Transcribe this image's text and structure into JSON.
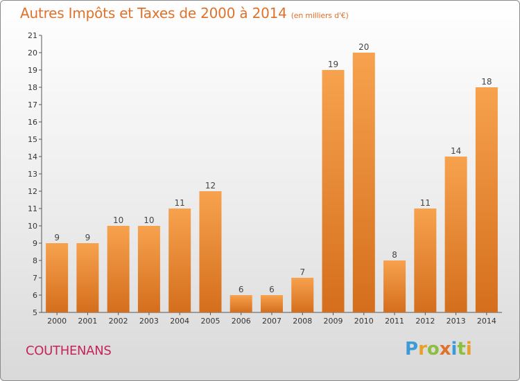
{
  "header": {
    "title": "Autres Impôts et Taxes de 2000 à 2014",
    "subtitle": "(en milliers d'€)"
  },
  "footer": {
    "commune": "COUTHENANS",
    "logo_text": "Proxiti"
  },
  "colors": {
    "bar_light": "#f7a24e",
    "bar_dark": "#d46e1c",
    "title": "#e0712a",
    "commune": "#c5245a"
  },
  "chart_data": {
    "type": "bar",
    "title": "Autres Impôts et Taxes de 2000 à 2014",
    "subtitle": "(en milliers d'€)",
    "xlabel": "",
    "ylabel": "",
    "categories": [
      "2000",
      "2001",
      "2002",
      "2003",
      "2004",
      "2005",
      "2006",
      "2007",
      "2008",
      "2009",
      "2010",
      "2011",
      "2012",
      "2013",
      "2014"
    ],
    "values": [
      9,
      9,
      10,
      10,
      11,
      12,
      6,
      6,
      7,
      19,
      20,
      8,
      11,
      14,
      18
    ],
    "ylim": [
      5,
      21
    ],
    "yticks": [
      5,
      6,
      7,
      8,
      9,
      10,
      11,
      12,
      13,
      14,
      15,
      16,
      17,
      18,
      19,
      20,
      21
    ],
    "grid": false,
    "legend": "none"
  }
}
